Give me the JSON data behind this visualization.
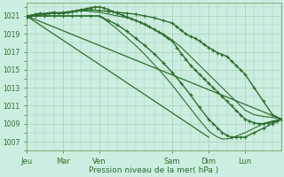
{
  "background_color": "#cceee0",
  "plot_bg_color": "#cceee0",
  "grid_color": "#aaccbb",
  "line_color": "#2d6e2d",
  "ylabel_text": "Pression niveau de la mer( hPa )",
  "yticks": [
    1007,
    1009,
    1011,
    1013,
    1015,
    1017,
    1019,
    1021
  ],
  "ylim": [
    1006.0,
    1022.5
  ],
  "xlim": [
    0,
    168
  ],
  "day_labels": [
    "Jeu",
    "Mar",
    "Ven",
    "Sam",
    "Dim",
    "Lun"
  ],
  "day_positions": [
    0,
    24,
    48,
    96,
    120,
    144
  ],
  "lines": [
    {
      "x": [
        0,
        168
      ],
      "y": [
        1021,
        1009.5
      ],
      "marker": false,
      "linewidth": 0.9,
      "zorder": 2
    },
    {
      "x": [
        0,
        120
      ],
      "y": [
        1021,
        1007.5
      ],
      "marker": false,
      "linewidth": 0.9,
      "zorder": 2
    },
    {
      "x": [
        0,
        6,
        12,
        18,
        24,
        30,
        36,
        42,
        48,
        54,
        60,
        66,
        72,
        78,
        84,
        90,
        96,
        102,
        108,
        114,
        120,
        126,
        132,
        138,
        144,
        150,
        156,
        162,
        168
      ],
      "y": [
        1021,
        1021.2,
        1021.3,
        1021.4,
        1021.3,
        1021.4,
        1021.6,
        1021.5,
        1021.4,
        1021.2,
        1021.0,
        1020.8,
        1020.5,
        1020.0,
        1019.5,
        1019.0,
        1018.3,
        1017.5,
        1016.5,
        1015.5,
        1014.5,
        1013.5,
        1012.5,
        1011.5,
        1010.5,
        1010.0,
        1009.8,
        1009.7,
        1009.5
      ],
      "marker": false,
      "linewidth": 0.8,
      "zorder": 3
    },
    {
      "x": [
        0,
        3,
        6,
        9,
        12,
        15,
        18,
        21,
        24,
        27,
        30,
        33,
        36,
        39,
        42,
        45,
        48,
        51,
        54,
        57,
        60,
        63,
        66,
        69,
        72,
        75,
        78,
        81,
        84,
        87,
        90,
        93,
        96,
        99,
        102,
        105,
        108,
        111,
        114,
        117,
        120,
        123,
        126,
        129,
        132,
        135,
        138,
        141,
        144,
        147,
        150,
        153,
        156,
        159,
        162,
        165,
        168
      ],
      "y": [
        1020.8,
        1021.0,
        1021.2,
        1021.3,
        1021.2,
        1021.3,
        1021.4,
        1021.3,
        1021.3,
        1021.4,
        1021.5,
        1021.6,
        1021.7,
        1021.8,
        1021.9,
        1022.0,
        1022.0,
        1021.9,
        1021.7,
        1021.5,
        1021.3,
        1021.1,
        1020.9,
        1020.7,
        1020.5,
        1020.3,
        1020.1,
        1019.8,
        1019.5,
        1019.2,
        1018.9,
        1018.5,
        1018.2,
        1017.5,
        1016.8,
        1016.2,
        1015.5,
        1015.0,
        1014.5,
        1014.0,
        1013.5,
        1013.0,
        1012.5,
        1012.0,
        1011.5,
        1011.0,
        1010.5,
        1010.0,
        1009.5,
        1009.3,
        1009.1,
        1009.0,
        1009.0,
        1009.1,
        1009.2,
        1009.3,
        1009.5
      ],
      "marker": true,
      "linewidth": 1.0,
      "zorder": 4
    },
    {
      "x": [
        0,
        6,
        12,
        18,
        24,
        30,
        36,
        42,
        48,
        54,
        60,
        66,
        72,
        78,
        84,
        90,
        96,
        99,
        102,
        105,
        108,
        111,
        114,
        117,
        120,
        123,
        126,
        129,
        132,
        135,
        138,
        141,
        144,
        150,
        156,
        162,
        168
      ],
      "y": [
        1021.0,
        1021.1,
        1021.2,
        1021.3,
        1021.4,
        1021.5,
        1021.6,
        1021.7,
        1021.6,
        1021.5,
        1021.4,
        1021.3,
        1021.2,
        1021.0,
        1020.8,
        1020.5,
        1020.2,
        1019.8,
        1019.4,
        1019.0,
        1018.7,
        1018.5,
        1018.2,
        1017.8,
        1017.5,
        1017.2,
        1016.9,
        1016.7,
        1016.5,
        1016.0,
        1015.5,
        1015.0,
        1014.5,
        1013.0,
        1011.5,
        1010.0,
        1009.5
      ],
      "marker": true,
      "linewidth": 1.0,
      "zorder": 4
    },
    {
      "x": [
        0,
        6,
        12,
        18,
        24,
        30,
        36,
        42,
        48,
        54,
        60,
        66,
        72,
        78,
        84,
        90,
        96,
        102,
        108,
        114,
        120,
        123,
        126,
        129,
        132,
        135,
        138,
        141,
        144,
        150,
        156,
        162,
        168
      ],
      "y": [
        1021.0,
        1021.0,
        1021.0,
        1021.0,
        1021.0,
        1021.0,
        1021.0,
        1021.0,
        1021.0,
        1020.5,
        1020.0,
        1019.3,
        1018.5,
        1017.7,
        1016.8,
        1015.8,
        1014.7,
        1013.5,
        1012.2,
        1010.8,
        1009.5,
        1009.0,
        1008.5,
        1008.0,
        1007.7,
        1007.5,
        1007.5,
        1007.5,
        1007.5,
        1008.0,
        1008.5,
        1009.0,
        1009.5
      ],
      "marker": true,
      "linewidth": 1.0,
      "zorder": 4
    },
    {
      "x": [
        0,
        6,
        12,
        18,
        24,
        30,
        36,
        42,
        48,
        54,
        60,
        66,
        72,
        78,
        84,
        90,
        96,
        102,
        108,
        114,
        120,
        123,
        126,
        129,
        132,
        135,
        138,
        141,
        144,
        150,
        156,
        162,
        168
      ],
      "y": [
        1021.0,
        1021.0,
        1021.0,
        1021.0,
        1021.0,
        1021.0,
        1021.0,
        1021.0,
        1021.0,
        1020.3,
        1019.5,
        1018.6,
        1017.7,
        1016.7,
        1015.6,
        1014.5,
        1013.3,
        1012.0,
        1010.7,
        1009.4,
        1008.2,
        1007.8,
        1007.5,
        1007.3,
        1007.3,
        1007.4,
        1007.6,
        1007.8,
        1008.0,
        1008.5,
        1009.0,
        1009.3,
        1009.5
      ],
      "marker": false,
      "linewidth": 0.8,
      "zorder": 3
    }
  ]
}
